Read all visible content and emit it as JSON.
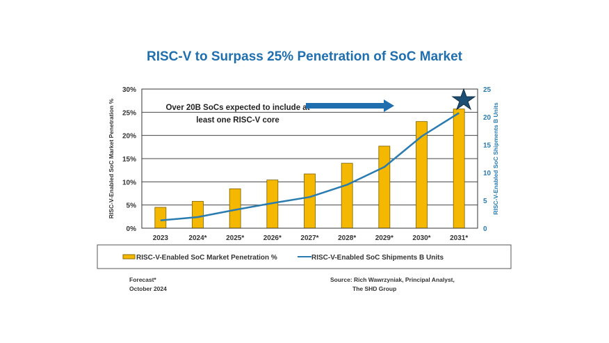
{
  "chart_data": {
    "type": "bar",
    "title": "RISC-V to Surpass 25% Penetration of SoC Market",
    "categories": [
      "2023",
      "2024*",
      "2025*",
      "2026*",
      "2027*",
      "2028*",
      "2029*",
      "2030*",
      "2031*"
    ],
    "series": [
      {
        "name": "RISC-V-Enabled SoC Market Penetration %",
        "type": "bar",
        "axis": "left",
        "values": [
          4.5,
          5.8,
          8.5,
          10.4,
          11.7,
          14.0,
          17.7,
          23.0,
          25.7
        ],
        "color": "#f5b800"
      },
      {
        "name": "RISC-V-Enabled SoC Shipments B Units",
        "type": "line",
        "axis": "right",
        "values": [
          1.4,
          2.0,
          3.3,
          4.5,
          5.6,
          7.8,
          11.0,
          16.5,
          20.7
        ],
        "color": "#2a7bb0"
      }
    ],
    "ylabel": "RISC-V-Enabled SoC Market Penetration %",
    "y2label": "RISC-V-Enabled SoC Shipments B Units",
    "ylim": [
      0,
      30
    ],
    "yticks": [
      "0%",
      "5%",
      "10%",
      "15%",
      "20%",
      "25%",
      "30%"
    ],
    "y2lim": [
      0,
      25
    ],
    "y2ticks": [
      "0",
      "5",
      "10",
      "15",
      "20",
      "25"
    ],
    "grid": true,
    "legend": "bottom",
    "annotation": [
      "Over 20B SoCs expected to include at",
      "least one RISC-V core"
    ],
    "footer_left": [
      "Forecast*",
      "October 2024"
    ],
    "footer_right": [
      "Source: Rich Wawrzyniak, Principal Analyst,",
      "The SHD Group"
    ]
  }
}
